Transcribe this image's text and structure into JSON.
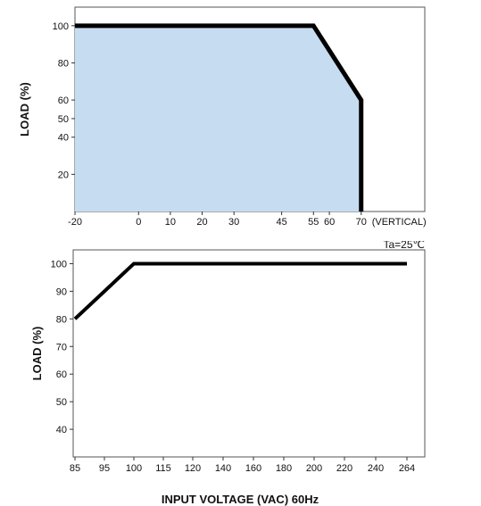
{
  "chart_data": [
    {
      "type": "area",
      "title": "",
      "xlabel": "",
      "ylabel": "LOAD (%)",
      "x_axis_suffix": "(VERTICAL)",
      "x_ticks": [
        -20,
        0,
        10,
        20,
        30,
        45,
        55,
        60,
        70
      ],
      "y_ticks": [
        20,
        40,
        50,
        60,
        80,
        100
      ],
      "xlim": [
        -20,
        90
      ],
      "ylim": [
        0,
        110
      ],
      "grid": false,
      "fill_color": "#c6dcf1",
      "line_color": "#000000",
      "series": [
        {
          "x": [
            -20,
            55,
            70,
            70
          ],
          "y": [
            100,
            100,
            60,
            0
          ]
        }
      ]
    },
    {
      "type": "line",
      "title": "",
      "xlabel": "INPUT VOLTAGE (VAC) 60Hz",
      "ylabel": "LOAD (%)",
      "note": "Ta=25℃",
      "categories": [
        "85",
        "95",
        "100",
        "115",
        "120",
        "140",
        "160",
        "180",
        "200",
        "220",
        "240",
        "264"
      ],
      "y_ticks": [
        40,
        50,
        60,
        70,
        80,
        90,
        100
      ],
      "ylim": [
        30,
        105
      ],
      "grid": false,
      "line_color": "#000000",
      "series": [
        {
          "values": [
            80,
            null,
            100,
            100,
            100,
            100,
            100,
            100,
            100,
            100,
            100,
            100
          ]
        }
      ]
    }
  ]
}
